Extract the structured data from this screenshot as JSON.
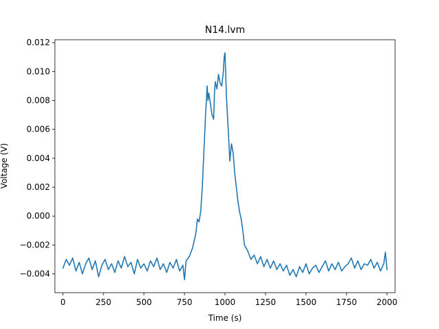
{
  "chart_data": {
    "type": "line",
    "title": "N14.lvm",
    "xlabel": "Time (s)",
    "ylabel": "Voltage (V)",
    "xlim": [
      -50,
      2050
    ],
    "ylim": [
      -0.0053,
      0.0122
    ],
    "xticks": [
      0,
      250,
      500,
      750,
      1000,
      1250,
      1500,
      1750,
      2000
    ],
    "xtick_labels": [
      "0",
      "250",
      "500",
      "750",
      "1000",
      "1250",
      "1500",
      "1750",
      "2000"
    ],
    "yticks": [
      -0.004,
      -0.002,
      0.0,
      0.002,
      0.004,
      0.006,
      0.008,
      0.01,
      0.012
    ],
    "ytick_labels": [
      "−0.004",
      "−0.002",
      "0.000",
      "0.002",
      "0.004",
      "0.006",
      "0.008",
      "0.010",
      "0.012"
    ],
    "grid": false,
    "legend": "none",
    "series": [
      {
        "color": "#1f77b4",
        "x": [
          0,
          20,
          40,
          60,
          80,
          100,
          120,
          140,
          160,
          180,
          200,
          220,
          240,
          260,
          280,
          300,
          320,
          340,
          360,
          380,
          400,
          420,
          440,
          460,
          480,
          500,
          520,
          540,
          560,
          580,
          600,
          620,
          640,
          660,
          680,
          700,
          720,
          740,
          750,
          760,
          780,
          800,
          820,
          830,
          840,
          850,
          860,
          870,
          880,
          890,
          895,
          900,
          910,
          920,
          930,
          935,
          940,
          950,
          960,
          970,
          980,
          990,
          995,
          1000,
          1010,
          1020,
          1030,
          1040,
          1050,
          1060,
          1070,
          1080,
          1090,
          1100,
          1110,
          1120,
          1140,
          1160,
          1180,
          1200,
          1220,
          1240,
          1260,
          1280,
          1300,
          1320,
          1340,
          1360,
          1380,
          1400,
          1420,
          1440,
          1460,
          1480,
          1500,
          1520,
          1540,
          1560,
          1580,
          1600,
          1620,
          1640,
          1660,
          1680,
          1700,
          1720,
          1740,
          1760,
          1780,
          1800,
          1820,
          1840,
          1860,
          1880,
          1900,
          1920,
          1940,
          1960,
          1980,
          1990,
          2000
        ],
        "y": [
          -0.0036,
          -0.003,
          -0.0034,
          -0.0029,
          -0.0038,
          -0.0032,
          -0.004,
          -0.0033,
          -0.0029,
          -0.0037,
          -0.0031,
          -0.0042,
          -0.0034,
          -0.003,
          -0.0037,
          -0.0033,
          -0.0039,
          -0.0031,
          -0.0036,
          -0.0028,
          -0.0035,
          -0.0032,
          -0.004,
          -0.003,
          -0.0036,
          -0.0033,
          -0.0038,
          -0.0031,
          -0.0035,
          -0.0029,
          -0.0037,
          -0.0033,
          -0.0039,
          -0.0032,
          -0.0036,
          -0.003,
          -0.0038,
          -0.0034,
          -0.0044,
          -0.0031,
          -0.0028,
          -0.0022,
          -0.0012,
          -0.0002,
          -0.0004,
          0.0003,
          0.002,
          0.0045,
          0.007,
          0.009,
          0.008,
          0.0085,
          0.0078,
          0.007,
          0.0067,
          0.0085,
          0.0093,
          0.0088,
          0.0098,
          0.0092,
          0.009,
          0.01,
          0.011,
          0.0113,
          0.008,
          0.006,
          0.0038,
          0.005,
          0.0044,
          0.003,
          0.002,
          0.001,
          0.0003,
          -0.0002,
          -0.001,
          -0.002,
          -0.0024,
          -0.003,
          -0.0027,
          -0.0033,
          -0.0028,
          -0.0035,
          -0.003,
          -0.0036,
          -0.0031,
          -0.0037,
          -0.0033,
          -0.0038,
          -0.0034,
          -0.0041,
          -0.0037,
          -0.0042,
          -0.0035,
          -0.0039,
          -0.0033,
          -0.004,
          -0.0036,
          -0.0034,
          -0.0039,
          -0.0035,
          -0.0031,
          -0.0038,
          -0.0033,
          -0.0037,
          -0.0032,
          -0.0038,
          -0.0035,
          -0.0033,
          -0.0029,
          -0.0036,
          -0.0031,
          -0.0037,
          -0.0033,
          -0.0034,
          -0.003,
          -0.0036,
          -0.0032,
          -0.0038,
          -0.0033,
          -0.0025,
          -0.0037
        ]
      }
    ]
  }
}
